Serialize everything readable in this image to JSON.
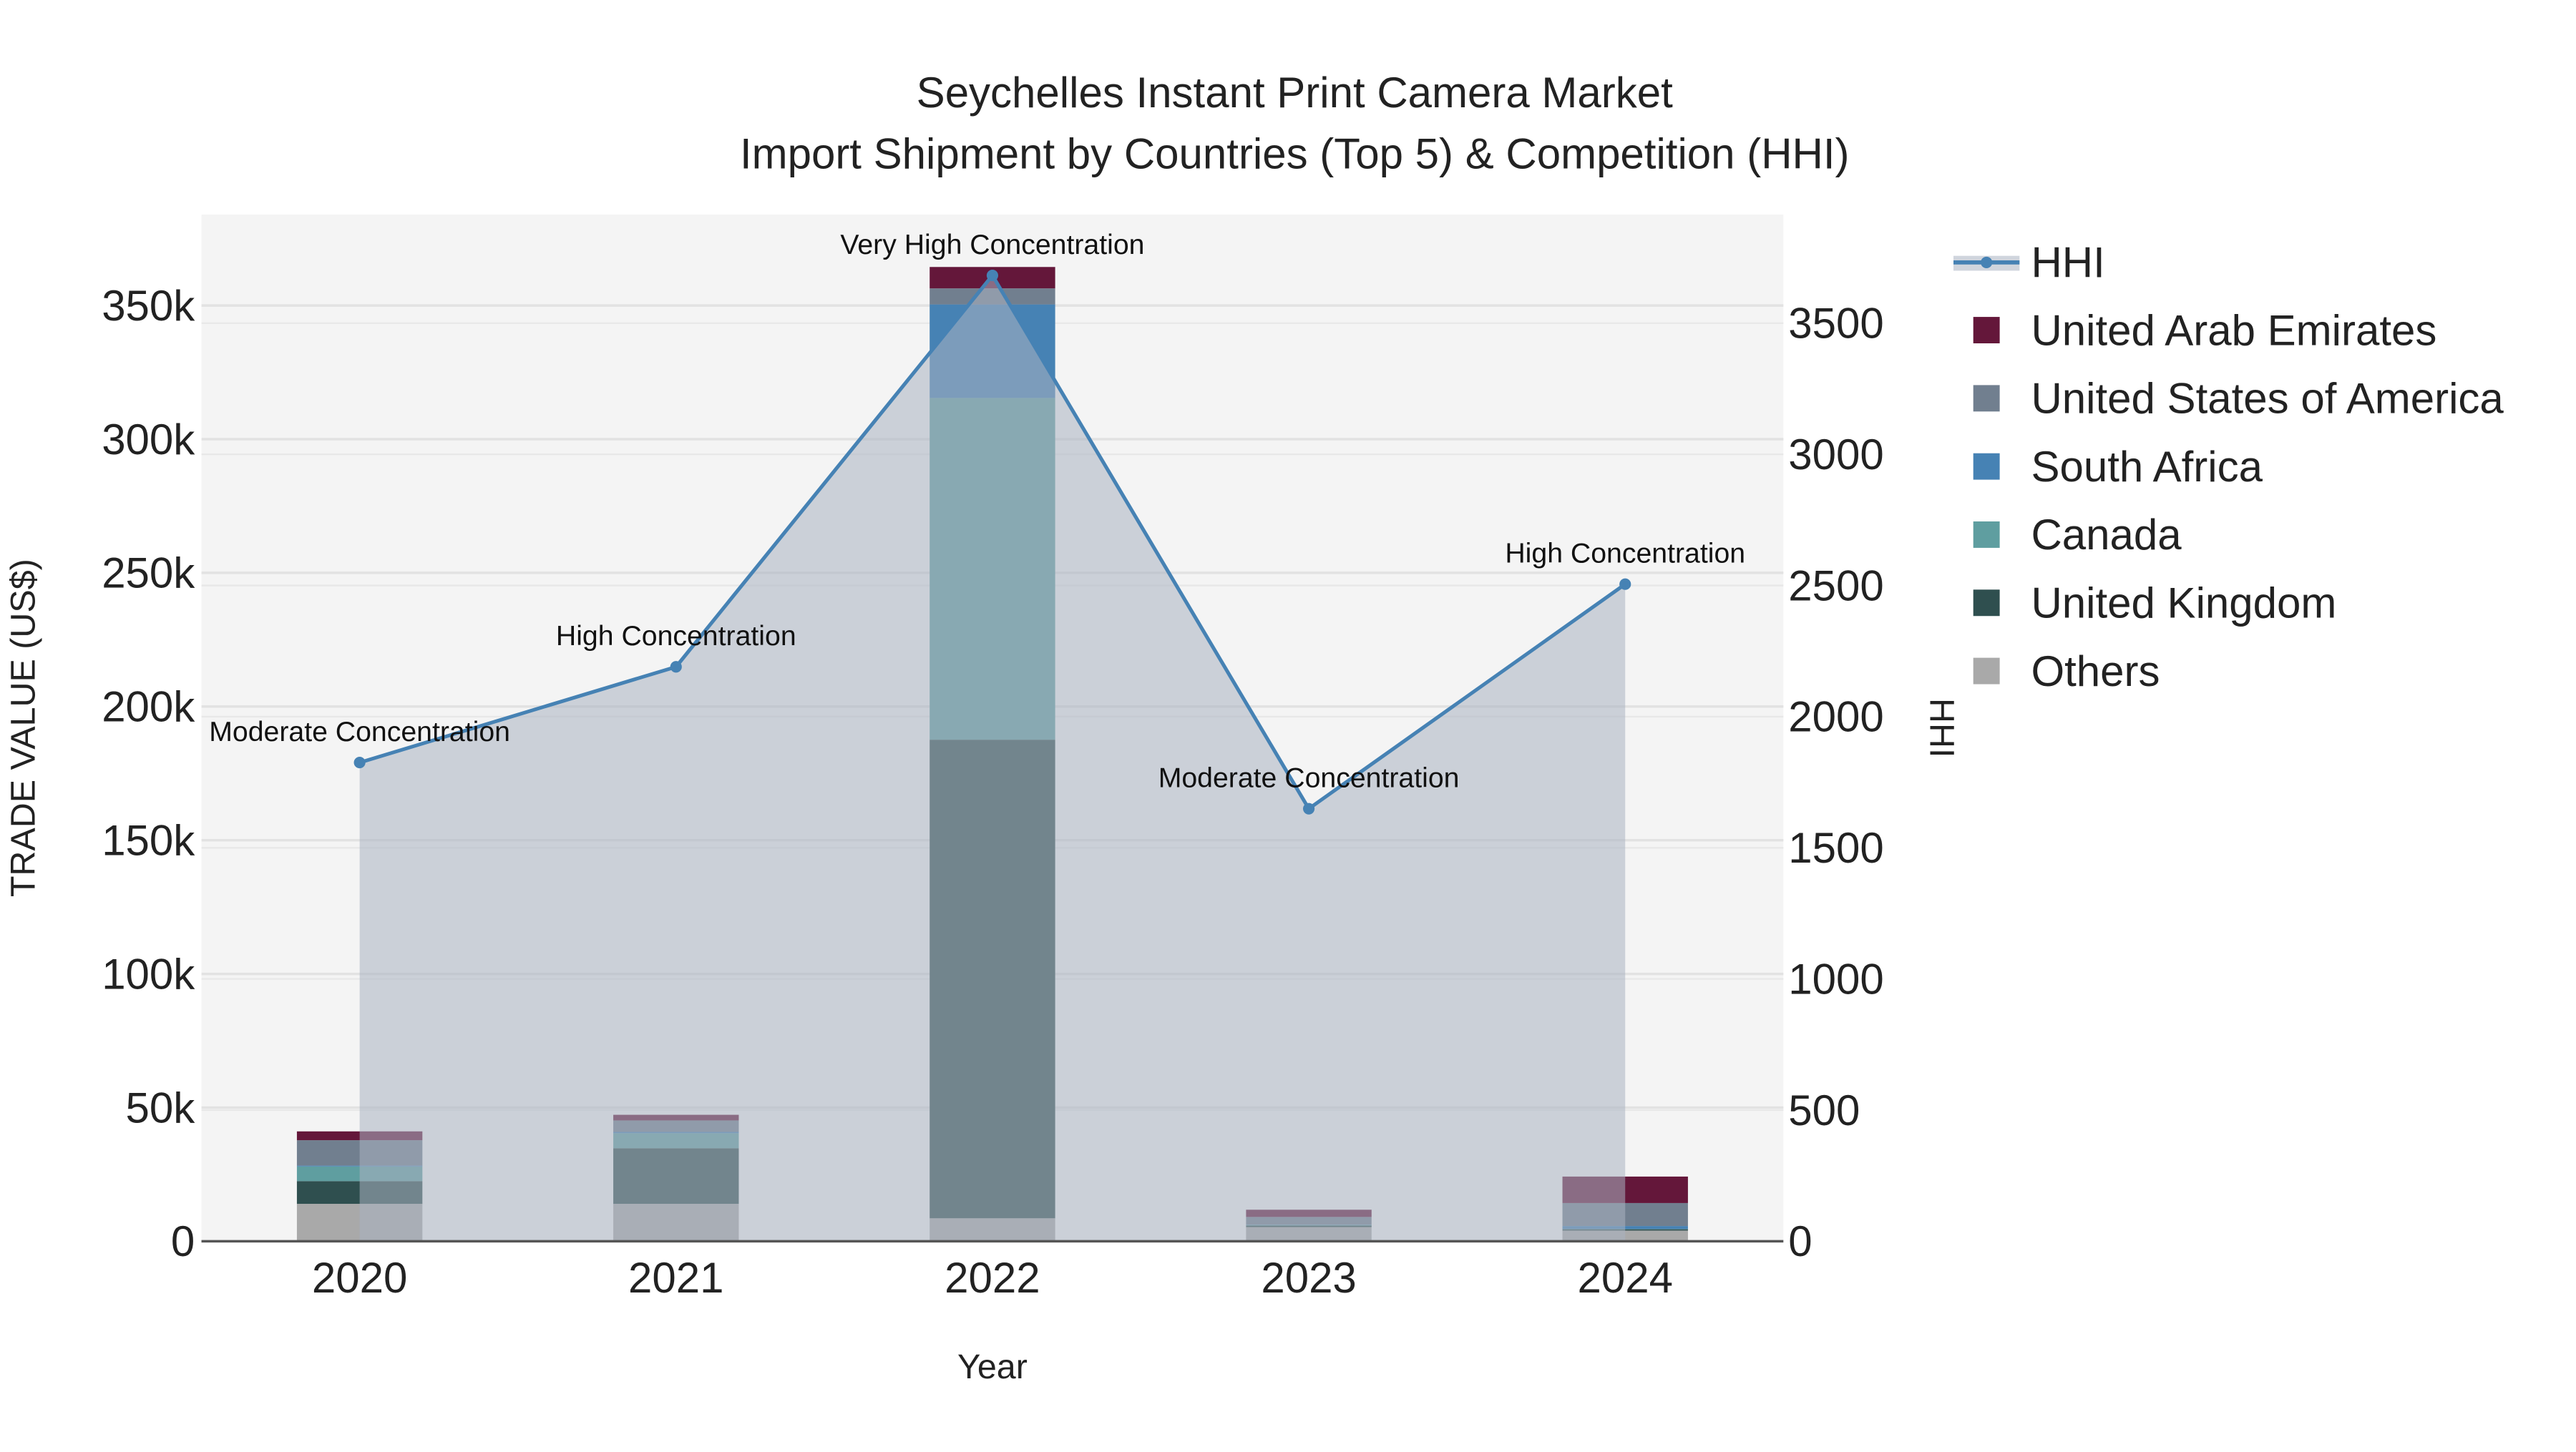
{
  "chart_data": {
    "type": "bar",
    "title": "Seychelles Instant Print Camera Market",
    "subtitle": "Import Shipment by Countries (Top 5) & Competition (HHI)",
    "xlabel": "Year",
    "ylabel": "TRADE VALUE (US$)",
    "y2label": "HHI",
    "categories": [
      "2020",
      "2021",
      "2022",
      "2023",
      "2024"
    ],
    "ylim": [
      0,
      384000
    ],
    "y2lim": [
      0,
      3914
    ],
    "yticks": [
      0,
      50000,
      100000,
      150000,
      200000,
      250000,
      300000,
      350000
    ],
    "yticklabels": [
      "0",
      "50k",
      "100k",
      "150k",
      "200k",
      "250k",
      "300k",
      "350k"
    ],
    "y2ticks": [
      0,
      500,
      1000,
      1500,
      2000,
      2500,
      3000,
      3500
    ],
    "y2ticklabels": [
      "0",
      "500",
      "1000",
      "1500",
      "2000",
      "2500",
      "3000",
      "3500"
    ],
    "series": [
      {
        "name": "Others",
        "color": "#a9a9a9",
        "values": [
          14000,
          14000,
          8600,
          5300,
          4000
        ]
      },
      {
        "name": "United Kingdom",
        "color": "#2f4f4f",
        "values": [
          8500,
          20800,
          179000,
          600,
          500
        ]
      },
      {
        "name": "Canada",
        "color": "#5f9ea0",
        "values": [
          5500,
          5600,
          127800,
          200,
          100
        ]
      },
      {
        "name": "South Africa",
        "color": "#4682b4",
        "values": [
          300,
          500,
          35000,
          100,
          1100
        ]
      },
      {
        "name": "United States of America",
        "color": "#717f8f",
        "values": [
          9500,
          4300,
          6000,
          2900,
          8600
        ]
      },
      {
        "name": "United Arab Emirates",
        "color": "#64173a",
        "values": [
          3300,
          2100,
          8000,
          2700,
          9900
        ]
      }
    ],
    "hhi": {
      "name": "HHI",
      "color": "#4682b4",
      "values": [
        1825,
        2190,
        3682,
        1649,
        2505
      ],
      "annotations": [
        "Moderate Concentration",
        "High Concentration",
        "Very High Concentration",
        "Moderate Concentration",
        "High Concentration"
      ]
    },
    "legend_order": [
      "HHI",
      "United Arab Emirates",
      "United States of America",
      "South Africa",
      "Canada",
      "United Kingdom",
      "Others"
    ],
    "legend_placement": "right",
    "grid": true
  }
}
